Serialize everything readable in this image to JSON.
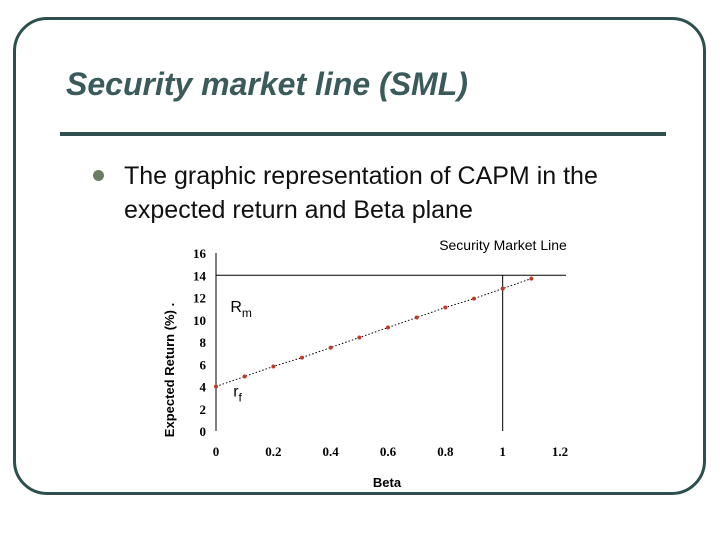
{
  "slide": {
    "title": "Security market line (SML)",
    "bullet": "The graphic representation of CAPM in the expected return and Beta plane"
  },
  "chart_data": {
    "type": "line",
    "title": "Security Market Line",
    "xlabel": "Beta",
    "ylabel": "Expected Return (%)",
    "xlim": [
      0,
      1.2
    ],
    "ylim": [
      0,
      16
    ],
    "x_ticks": [
      "0",
      "0.2",
      "0.4",
      "0.6",
      "0.8",
      "1",
      "1.2"
    ],
    "y_ticks": [
      "0",
      "2",
      "4",
      "6",
      "8",
      "10",
      "12",
      "14",
      "16"
    ],
    "grid": false,
    "series": [
      {
        "x": [
          0,
          0.1,
          0.2,
          0.3,
          0.4,
          0.5,
          0.6,
          0.7,
          0.8,
          0.9,
          1.0,
          1.1
        ],
        "values": [
          4,
          4.9,
          5.8,
          6.6,
          7.5,
          8.4,
          9.3,
          10.2,
          11.1,
          11.9,
          12.8,
          13.7
        ],
        "color": "#c0392b"
      }
    ],
    "reference_lines": {
      "beta": 1,
      "return": 14
    },
    "annotations": [
      {
        "main": "R",
        "sub": "m",
        "x": 0.05,
        "y": 10.7
      },
      {
        "main": "r",
        "sub": "f",
        "x": 0.06,
        "y": 3.1
      }
    ]
  }
}
